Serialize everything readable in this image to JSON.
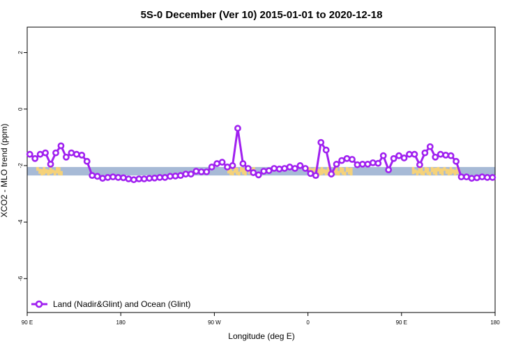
{
  "chart_data": {
    "type": "line",
    "title": "5S-0 December (Ver 10)   2015-01-01 to 2020-12-18",
    "xlabel": "Longitude (deg E)",
    "ylabel": "XCO2 - MLO trend (ppm)",
    "xlim": [
      90,
      450
    ],
    "ylim": [
      -7.2,
      2.9
    ],
    "x_ticks": [
      {
        "value": 90,
        "label": "90 E"
      },
      {
        "value": 162,
        "label": "180"
      },
      {
        "value": 234,
        "label": "90 W"
      },
      {
        "value": 306,
        "label": "0"
      },
      {
        "value": 378,
        "label": "90 E"
      },
      {
        "value": 450,
        "label": "180"
      }
    ],
    "y_ticks": [
      {
        "value": 2,
        "label": "2"
      },
      {
        "value": 0,
        "label": "0"
      },
      {
        "value": -2,
        "label": "-2"
      },
      {
        "value": -4,
        "label": "-4"
      },
      {
        "value": -6,
        "label": "-6"
      }
    ],
    "band": {
      "y_min": -2.35,
      "y_max": -2.05,
      "color": "#a7bad6",
      "land_color": "#f5d27a"
    },
    "land_segments": [
      [
        97,
        117
      ],
      [
        244,
        265
      ],
      [
        306,
        340
      ],
      [
        386,
        423
      ]
    ],
    "series": [
      {
        "name": "Land (Nadir&Glint) and Ocean (Glint)",
        "color": "#a020f0",
        "x": [
          92,
          96,
          100,
          104,
          108,
          112,
          116,
          120,
          124,
          128,
          132,
          136,
          140,
          144,
          148,
          152,
          156,
          160,
          164,
          168,
          172,
          176,
          180,
          184,
          188,
          192,
          196,
          200,
          204,
          208,
          212,
          216,
          220,
          224,
          228,
          232,
          236,
          240,
          244,
          248,
          252,
          256,
          260,
          264,
          268,
          272,
          276,
          280,
          284,
          288,
          292,
          296,
          300,
          304,
          308,
          312,
          316,
          320,
          324,
          328,
          332,
          336,
          340,
          344,
          348,
          352,
          356,
          360,
          364,
          368,
          372,
          376,
          380,
          384,
          388,
          392,
          396,
          400,
          404,
          408,
          412,
          416,
          420,
          424,
          428,
          432,
          436,
          440,
          444,
          448
        ],
        "y": [
          -1.6,
          -1.75,
          -1.6,
          -1.55,
          -1.95,
          -1.55,
          -1.3,
          -1.7,
          -1.55,
          -1.6,
          -1.63,
          -1.85,
          -2.35,
          -2.38,
          -2.45,
          -2.42,
          -2.4,
          -2.42,
          -2.43,
          -2.47,
          -2.5,
          -2.47,
          -2.47,
          -2.45,
          -2.44,
          -2.42,
          -2.42,
          -2.38,
          -2.37,
          -2.35,
          -2.3,
          -2.3,
          -2.2,
          -2.22,
          -2.22,
          -2.05,
          -1.93,
          -1.88,
          -2.05,
          -2.0,
          -0.68,
          -1.93,
          -2.1,
          -2.25,
          -2.33,
          -2.2,
          -2.18,
          -2.1,
          -2.12,
          -2.1,
          -2.05,
          -2.1,
          -2.0,
          -2.1,
          -2.28,
          -2.35,
          -1.18,
          -1.45,
          -2.3,
          -1.95,
          -1.82,
          -1.75,
          -1.78,
          -1.97,
          -1.95,
          -1.95,
          -1.9,
          -1.92,
          -1.65,
          -2.15,
          -1.75,
          -1.65,
          -1.73,
          -1.6,
          -1.6,
          -1.97,
          -1.55,
          -1.33,
          -1.7,
          -1.6,
          -1.63,
          -1.65,
          -1.85,
          -2.4,
          -2.4,
          -2.45,
          -2.43,
          -2.4,
          -2.42,
          -2.42
        ]
      }
    ],
    "legend": {
      "position": "bottom-left"
    },
    "grid": false
  }
}
